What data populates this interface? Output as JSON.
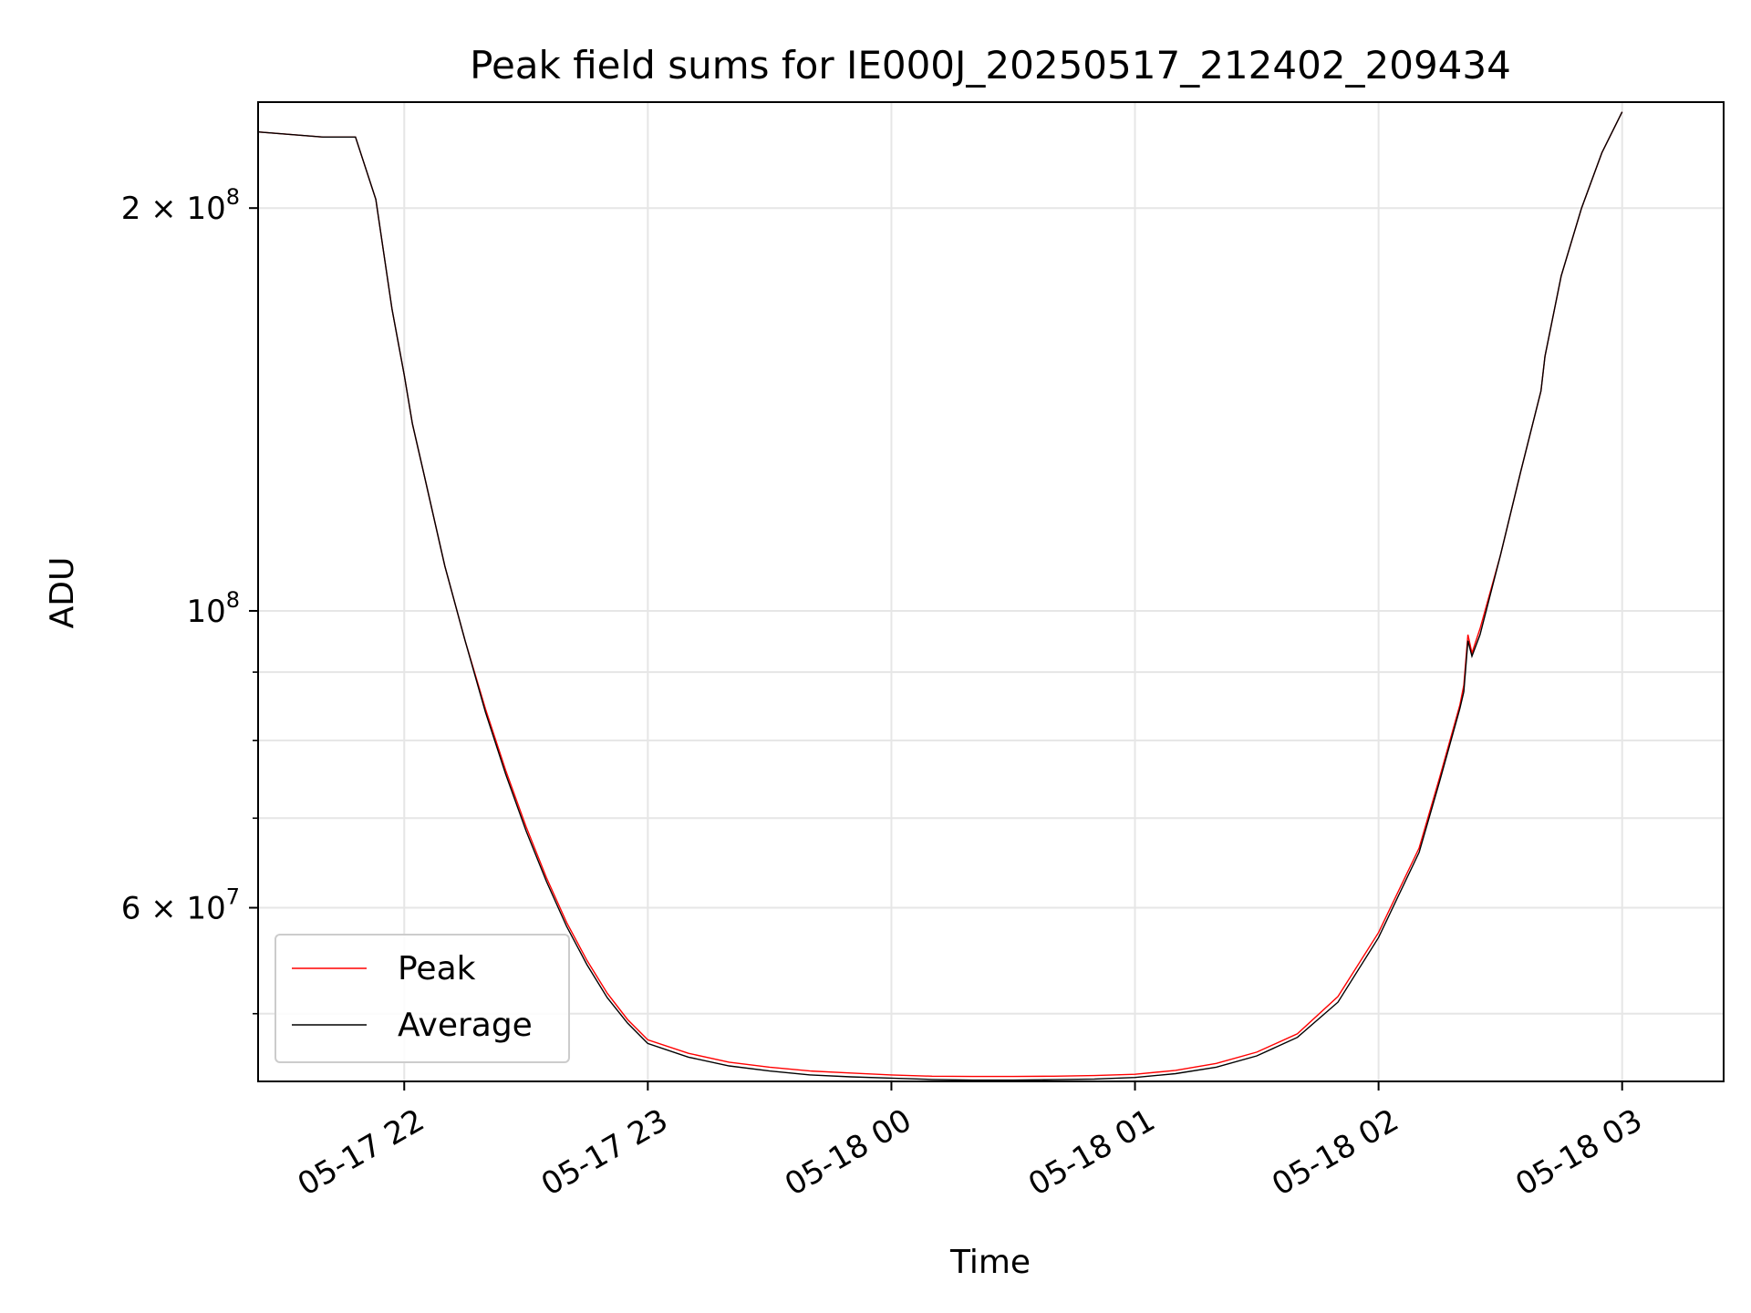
{
  "chart_data": {
    "type": "line",
    "title": "Peak field sums for IE000J_20250517_212402_209434",
    "xlabel": "Time",
    "ylabel": "ADU",
    "x_scale": "time",
    "y_scale": "log",
    "xlim": [
      "2025-05-17 21:24",
      "2025-05-18 03:25"
    ],
    "ylim": [
      44500000,
      240000000
    ],
    "grid": true,
    "legend_position": "lower-left",
    "x_ticks": [
      {
        "value": "2025-05-17 22:00",
        "label": "05-17 22"
      },
      {
        "value": "2025-05-17 23:00",
        "label": "05-17 23"
      },
      {
        "value": "2025-05-18 00:00",
        "label": "05-18 00"
      },
      {
        "value": "2025-05-18 01:00",
        "label": "05-18 01"
      },
      {
        "value": "2025-05-18 02:00",
        "label": "05-18 02"
      },
      {
        "value": "2025-05-18 03:00",
        "label": "05-18 03"
      }
    ],
    "y_major_ticks": [
      {
        "value": 200000000,
        "base": "2 × 10",
        "exp": "8"
      },
      {
        "value": 100000000,
        "base": "10",
        "exp": "8"
      },
      {
        "value": 60000000,
        "base": "6 × 10",
        "exp": "7"
      }
    ],
    "y_minor_ticks": [
      50000000,
      70000000,
      80000000,
      90000000
    ],
    "x": [
      "2025-05-17 21:24",
      "2025-05-17 21:40",
      "2025-05-17 21:48",
      "2025-05-17 21:53",
      "2025-05-17 21:57",
      "2025-05-17 22:00",
      "2025-05-17 22:02",
      "2025-05-17 22:05",
      "2025-05-17 22:10",
      "2025-05-17 22:15",
      "2025-05-17 22:20",
      "2025-05-17 22:25",
      "2025-05-17 22:30",
      "2025-05-17 22:35",
      "2025-05-17 22:40",
      "2025-05-17 22:45",
      "2025-05-17 22:50",
      "2025-05-17 22:55",
      "2025-05-17 23:00",
      "2025-05-17 23:10",
      "2025-05-17 23:20",
      "2025-05-17 23:30",
      "2025-05-17 23:40",
      "2025-05-17 23:50",
      "2025-05-18 00:00",
      "2025-05-18 00:10",
      "2025-05-18 00:20",
      "2025-05-18 00:30",
      "2025-05-18 00:40",
      "2025-05-18 00:50",
      "2025-05-18 01:00",
      "2025-05-18 01:10",
      "2025-05-18 01:20",
      "2025-05-18 01:30",
      "2025-05-18 01:40",
      "2025-05-18 01:50",
      "2025-05-18 02:00",
      "2025-05-18 02:10",
      "2025-05-18 02:15",
      "2025-05-18 02:20",
      "2025-05-18 02:21",
      "2025-05-18 02:22",
      "2025-05-18 02:23",
      "2025-05-18 02:25",
      "2025-05-18 02:30",
      "2025-05-18 02:35",
      "2025-05-18 02:40",
      "2025-05-18 02:41",
      "2025-05-18 02:45",
      "2025-05-18 02:50",
      "2025-05-18 02:55",
      "2025-05-18 03:00"
    ],
    "series": [
      {
        "name": "Peak",
        "color": "#ff0000",
        "values": [
          228000000,
          226000000,
          226000000,
          203000000,
          168000000,
          150000000,
          138000000,
          126000000,
          108000000,
          95000000,
          84500000,
          76000000,
          69000000,
          63200000,
          58500000,
          54800000,
          51800000,
          49500000,
          47800000,
          46700000,
          46000000,
          45600000,
          45300000,
          45150000,
          45000000,
          44900000,
          44880000,
          44880000,
          44900000,
          44950000,
          45050000,
          45350000,
          45900000,
          46800000,
          48300000,
          51500000,
          57500000,
          66500000,
          75000000,
          85000000,
          88000000,
          96000000,
          93000000,
          97000000,
          110000000,
          127000000,
          146000000,
          155000000,
          178000000,
          200000000,
          220000000,
          236000000
        ]
      },
      {
        "name": "Average",
        "color": "#000000",
        "values": [
          228000000,
          226000000,
          226000000,
          203000000,
          168000000,
          150000000,
          138000000,
          126000000,
          108000000,
          95000000,
          84000000,
          75500000,
          68500000,
          62800000,
          58100000,
          54400000,
          51400000,
          49200000,
          47500000,
          46400000,
          45700000,
          45300000,
          45000000,
          44850000,
          44750000,
          44650000,
          44600000,
          44600000,
          44630000,
          44680000,
          44800000,
          45100000,
          45600000,
          46500000,
          48000000,
          51000000,
          57000000,
          66000000,
          74500000,
          84500000,
          87000000,
          95000000,
          92500000,
          96000000,
          110000000,
          127000000,
          146000000,
          155000000,
          178000000,
          200000000,
          220000000,
          236000000
        ]
      }
    ]
  }
}
